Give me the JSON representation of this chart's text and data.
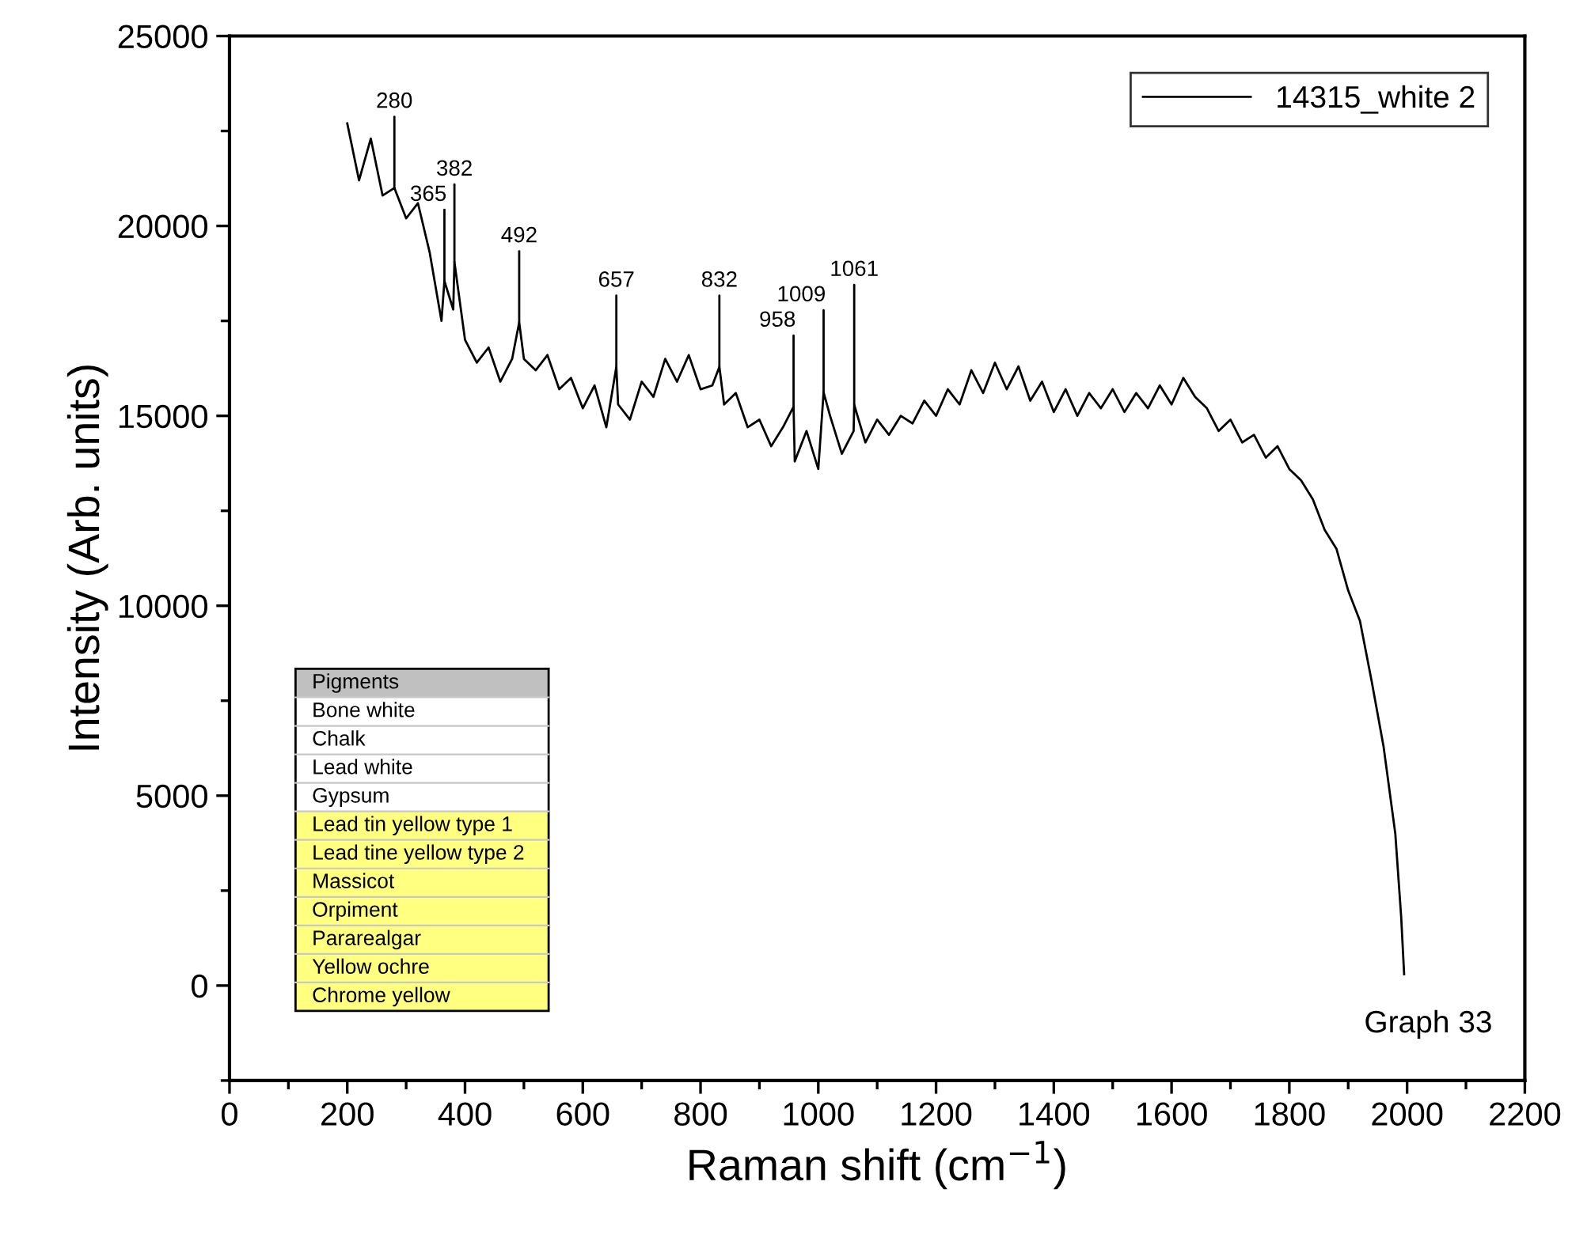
{
  "chart_data": {
    "type": "line",
    "xlabel": "Raman shift (cm$^{−1}$)",
    "ylabel": "Intensity (Arb. units)",
    "x": [
      200,
      220,
      240,
      260,
      280,
      300,
      320,
      340,
      360,
      365,
      380,
      382,
      400,
      420,
      440,
      460,
      480,
      492,
      500,
      520,
      540,
      560,
      580,
      600,
      620,
      640,
      657,
      660,
      680,
      700,
      720,
      740,
      760,
      780,
      800,
      820,
      832,
      840,
      860,
      880,
      900,
      920,
      940,
      958,
      960,
      980,
      1000,
      1009,
      1020,
      1040,
      1060,
      1061,
      1080,
      1100,
      1120,
      1140,
      1160,
      1180,
      1200,
      1220,
      1240,
      1260,
      1280,
      1300,
      1320,
      1340,
      1360,
      1380,
      1400,
      1420,
      1440,
      1460,
      1480,
      1500,
      1520,
      1540,
      1560,
      1580,
      1600,
      1620,
      1640,
      1660,
      1680,
      1700,
      1720,
      1740,
      1760,
      1780,
      1800,
      1820,
      1840,
      1860,
      1880,
      1900,
      1920,
      1940,
      1960,
      1980,
      1990,
      1995
    ],
    "series": [
      {
        "name": "14315_white 2",
        "color": "#000000",
        "values": [
          22700,
          21200,
          22300,
          20800,
          21000,
          20200,
          20600,
          19300,
          17500,
          18550,
          17800,
          19050,
          17000,
          16400,
          16800,
          15900,
          16500,
          17460,
          16500,
          16200,
          16600,
          15700,
          16000,
          15200,
          15800,
          14700,
          16290,
          15300,
          14900,
          15900,
          15500,
          16500,
          15900,
          16600,
          15700,
          15800,
          16290,
          15300,
          15600,
          14700,
          14900,
          14200,
          14700,
          15240,
          13800,
          14600,
          13600,
          15620,
          15000,
          14000,
          14600,
          15290,
          14300,
          14900,
          14500,
          15000,
          14800,
          15400,
          15000,
          15700,
          15300,
          16200,
          15600,
          16400,
          15700,
          16300,
          15400,
          15900,
          15100,
          15700,
          15000,
          15600,
          15200,
          15700,
          15100,
          15600,
          15200,
          15800,
          15300,
          16000,
          15500,
          15200,
          14600,
          14900,
          14300,
          14500,
          13900,
          14200,
          13600,
          13300,
          12800,
          12000,
          11500,
          10400,
          9600,
          8000,
          6300,
          4000,
          1800,
          300
        ]
      }
    ],
    "xlim": [
      0,
      2200
    ],
    "xticks": [
      0,
      200,
      400,
      600,
      800,
      1000,
      1200,
      1400,
      1600,
      1800,
      2000,
      2200
    ],
    "ylim": [
      -2500,
      25000
    ],
    "yticks": [
      0,
      5000,
      10000,
      15000,
      20000,
      25000
    ],
    "grid": false,
    "legend": "top right",
    "marker": "none",
    "line_style": "solid",
    "annotations": [
      {
        "text": "280",
        "x": 280,
        "y": 21000
      },
      {
        "text": "365",
        "x": 365,
        "y": 18550
      },
      {
        "text": "382",
        "x": 382,
        "y": 19050
      },
      {
        "text": "492",
        "x": 492,
        "y": 17460
      },
      {
        "text": "657",
        "x": 657,
        "y": 16290
      },
      {
        "text": "832",
        "x": 832,
        "y": 16290
      },
      {
        "text": "958",
        "x": 958,
        "y": 15240
      },
      {
        "text": "1009",
        "x": 1009,
        "y": 15620
      },
      {
        "text": "1061",
        "x": 1061,
        "y": 15290
      },
      "Pigments",
      "Bone white",
      "Chalk",
      "Lead white",
      "Gypsum",
      "Lead tin yellow type 1",
      "Lead tine yellow type 2",
      "Massicot",
      "Orpiment",
      "Pararealgar",
      "Yellow ochre",
      "Chrome yellow",
      "Graph 33"
    ]
  }
}
